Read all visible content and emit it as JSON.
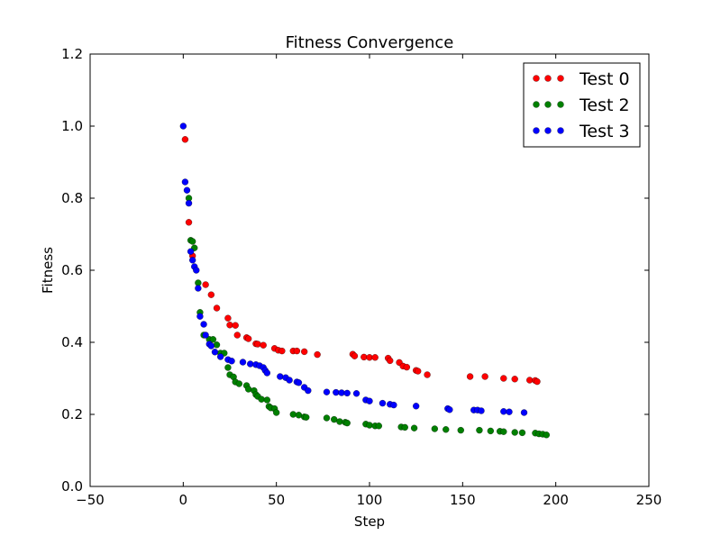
{
  "chart_data": {
    "type": "scatter",
    "title": "Fitness Convergence",
    "xlabel": "Step",
    "ylabel": "Fitness",
    "xlim": [
      -50,
      250
    ],
    "ylim": [
      0.0,
      1.2
    ],
    "x_ticks": [
      -50,
      0,
      50,
      100,
      150,
      200,
      250
    ],
    "y_ticks": [
      0.0,
      0.2,
      0.4,
      0.6,
      0.8,
      1.0,
      1.2
    ],
    "x_tick_labels": [
      "−50",
      "0",
      "50",
      "100",
      "150",
      "200",
      "250"
    ],
    "y_tick_labels": [
      "0.0",
      "0.2",
      "0.4",
      "0.6",
      "0.8",
      "1.0",
      "1.2"
    ],
    "grid": false,
    "legend_position": "top-right",
    "series": [
      {
        "name": "Test 0",
        "color": "#ff0000",
        "points": [
          [
            1,
            0.963
          ],
          [
            3,
            0.733
          ],
          [
            5,
            0.64
          ],
          [
            12,
            0.56
          ],
          [
            15,
            0.532
          ],
          [
            18,
            0.495
          ],
          [
            24,
            0.467
          ],
          [
            25,
            0.448
          ],
          [
            28,
            0.447
          ],
          [
            29,
            0.42
          ],
          [
            34,
            0.413
          ],
          [
            35,
            0.41
          ],
          [
            39,
            0.396
          ],
          [
            40,
            0.395
          ],
          [
            43,
            0.392
          ],
          [
            49,
            0.383
          ],
          [
            51,
            0.378
          ],
          [
            53,
            0.376
          ],
          [
            59,
            0.376
          ],
          [
            61,
            0.376
          ],
          [
            65,
            0.374
          ],
          [
            72,
            0.366
          ],
          [
            91,
            0.367
          ],
          [
            92,
            0.362
          ],
          [
            97,
            0.359
          ],
          [
            100,
            0.358
          ],
          [
            103,
            0.358
          ],
          [
            110,
            0.356
          ],
          [
            111,
            0.349
          ],
          [
            116,
            0.344
          ],
          [
            118,
            0.334
          ],
          [
            120,
            0.331
          ],
          [
            125,
            0.322
          ],
          [
            126,
            0.32
          ],
          [
            131,
            0.31
          ],
          [
            154,
            0.305
          ],
          [
            162,
            0.305
          ],
          [
            172,
            0.3
          ],
          [
            178,
            0.298
          ],
          [
            186,
            0.295
          ],
          [
            189,
            0.294
          ],
          [
            190,
            0.291
          ]
        ]
      },
      {
        "name": "Test 2",
        "color": "#008000",
        "points": [
          [
            3,
            0.8
          ],
          [
            4,
            0.683
          ],
          [
            5,
            0.68
          ],
          [
            6,
            0.662
          ],
          [
            8,
            0.565
          ],
          [
            9,
            0.483
          ],
          [
            11,
            0.42
          ],
          [
            14,
            0.408
          ],
          [
            16,
            0.408
          ],
          [
            18,
            0.393
          ],
          [
            20,
            0.37
          ],
          [
            22,
            0.37
          ],
          [
            24,
            0.33
          ],
          [
            25,
            0.31
          ],
          [
            27,
            0.304
          ],
          [
            28,
            0.29
          ],
          [
            30,
            0.285
          ],
          [
            34,
            0.28
          ],
          [
            35,
            0.27
          ],
          [
            38,
            0.266
          ],
          [
            39,
            0.255
          ],
          [
            40,
            0.25
          ],
          [
            42,
            0.242
          ],
          [
            45,
            0.24
          ],
          [
            46,
            0.222
          ],
          [
            47,
            0.218
          ],
          [
            49,
            0.216
          ],
          [
            50,
            0.205
          ],
          [
            59,
            0.2
          ],
          [
            62,
            0.198
          ],
          [
            65,
            0.193
          ],
          [
            66,
            0.192
          ],
          [
            77,
            0.19
          ],
          [
            81,
            0.186
          ],
          [
            84,
            0.18
          ],
          [
            87,
            0.178
          ],
          [
            88,
            0.176
          ],
          [
            98,
            0.173
          ],
          [
            100,
            0.17
          ],
          [
            103,
            0.168
          ],
          [
            105,
            0.168
          ],
          [
            117,
            0.165
          ],
          [
            119,
            0.164
          ],
          [
            124,
            0.162
          ],
          [
            135,
            0.16
          ],
          [
            141,
            0.158
          ],
          [
            149,
            0.156
          ],
          [
            159,
            0.156
          ],
          [
            165,
            0.154
          ],
          [
            170,
            0.153
          ],
          [
            172,
            0.152
          ],
          [
            178,
            0.15
          ],
          [
            182,
            0.149
          ],
          [
            189,
            0.148
          ],
          [
            191,
            0.146
          ],
          [
            193,
            0.145
          ],
          [
            195,
            0.143
          ]
        ]
      },
      {
        "name": "Test 3",
        "color": "#0000ff",
        "points": [
          [
            0,
            1.0
          ],
          [
            1,
            0.845
          ],
          [
            2,
            0.822
          ],
          [
            3,
            0.786
          ],
          [
            4,
            0.652
          ],
          [
            5,
            0.628
          ],
          [
            6,
            0.61
          ],
          [
            7,
            0.6
          ],
          [
            8,
            0.55
          ],
          [
            9,
            0.472
          ],
          [
            11,
            0.45
          ],
          [
            12,
            0.42
          ],
          [
            14,
            0.395
          ],
          [
            15,
            0.39
          ],
          [
            17,
            0.373
          ],
          [
            20,
            0.36
          ],
          [
            24,
            0.352
          ],
          [
            26,
            0.348
          ],
          [
            32,
            0.345
          ],
          [
            36,
            0.34
          ],
          [
            39,
            0.338
          ],
          [
            41,
            0.335
          ],
          [
            43,
            0.33
          ],
          [
            44,
            0.322
          ],
          [
            45,
            0.315
          ],
          [
            52,
            0.305
          ],
          [
            55,
            0.302
          ],
          [
            57,
            0.295
          ],
          [
            61,
            0.29
          ],
          [
            62,
            0.288
          ],
          [
            65,
            0.275
          ],
          [
            67,
            0.266
          ],
          [
            77,
            0.262
          ],
          [
            82,
            0.261
          ],
          [
            85,
            0.26
          ],
          [
            88,
            0.259
          ],
          [
            93,
            0.258
          ],
          [
            98,
            0.24
          ],
          [
            100,
            0.237
          ],
          [
            107,
            0.231
          ],
          [
            111,
            0.228
          ],
          [
            113,
            0.226
          ],
          [
            125,
            0.223
          ],
          [
            142,
            0.216
          ],
          [
            143,
            0.213
          ],
          [
            156,
            0.212
          ],
          [
            158,
            0.212
          ],
          [
            160,
            0.21
          ],
          [
            172,
            0.208
          ],
          [
            175,
            0.207
          ],
          [
            183,
            0.205
          ]
        ]
      }
    ]
  }
}
